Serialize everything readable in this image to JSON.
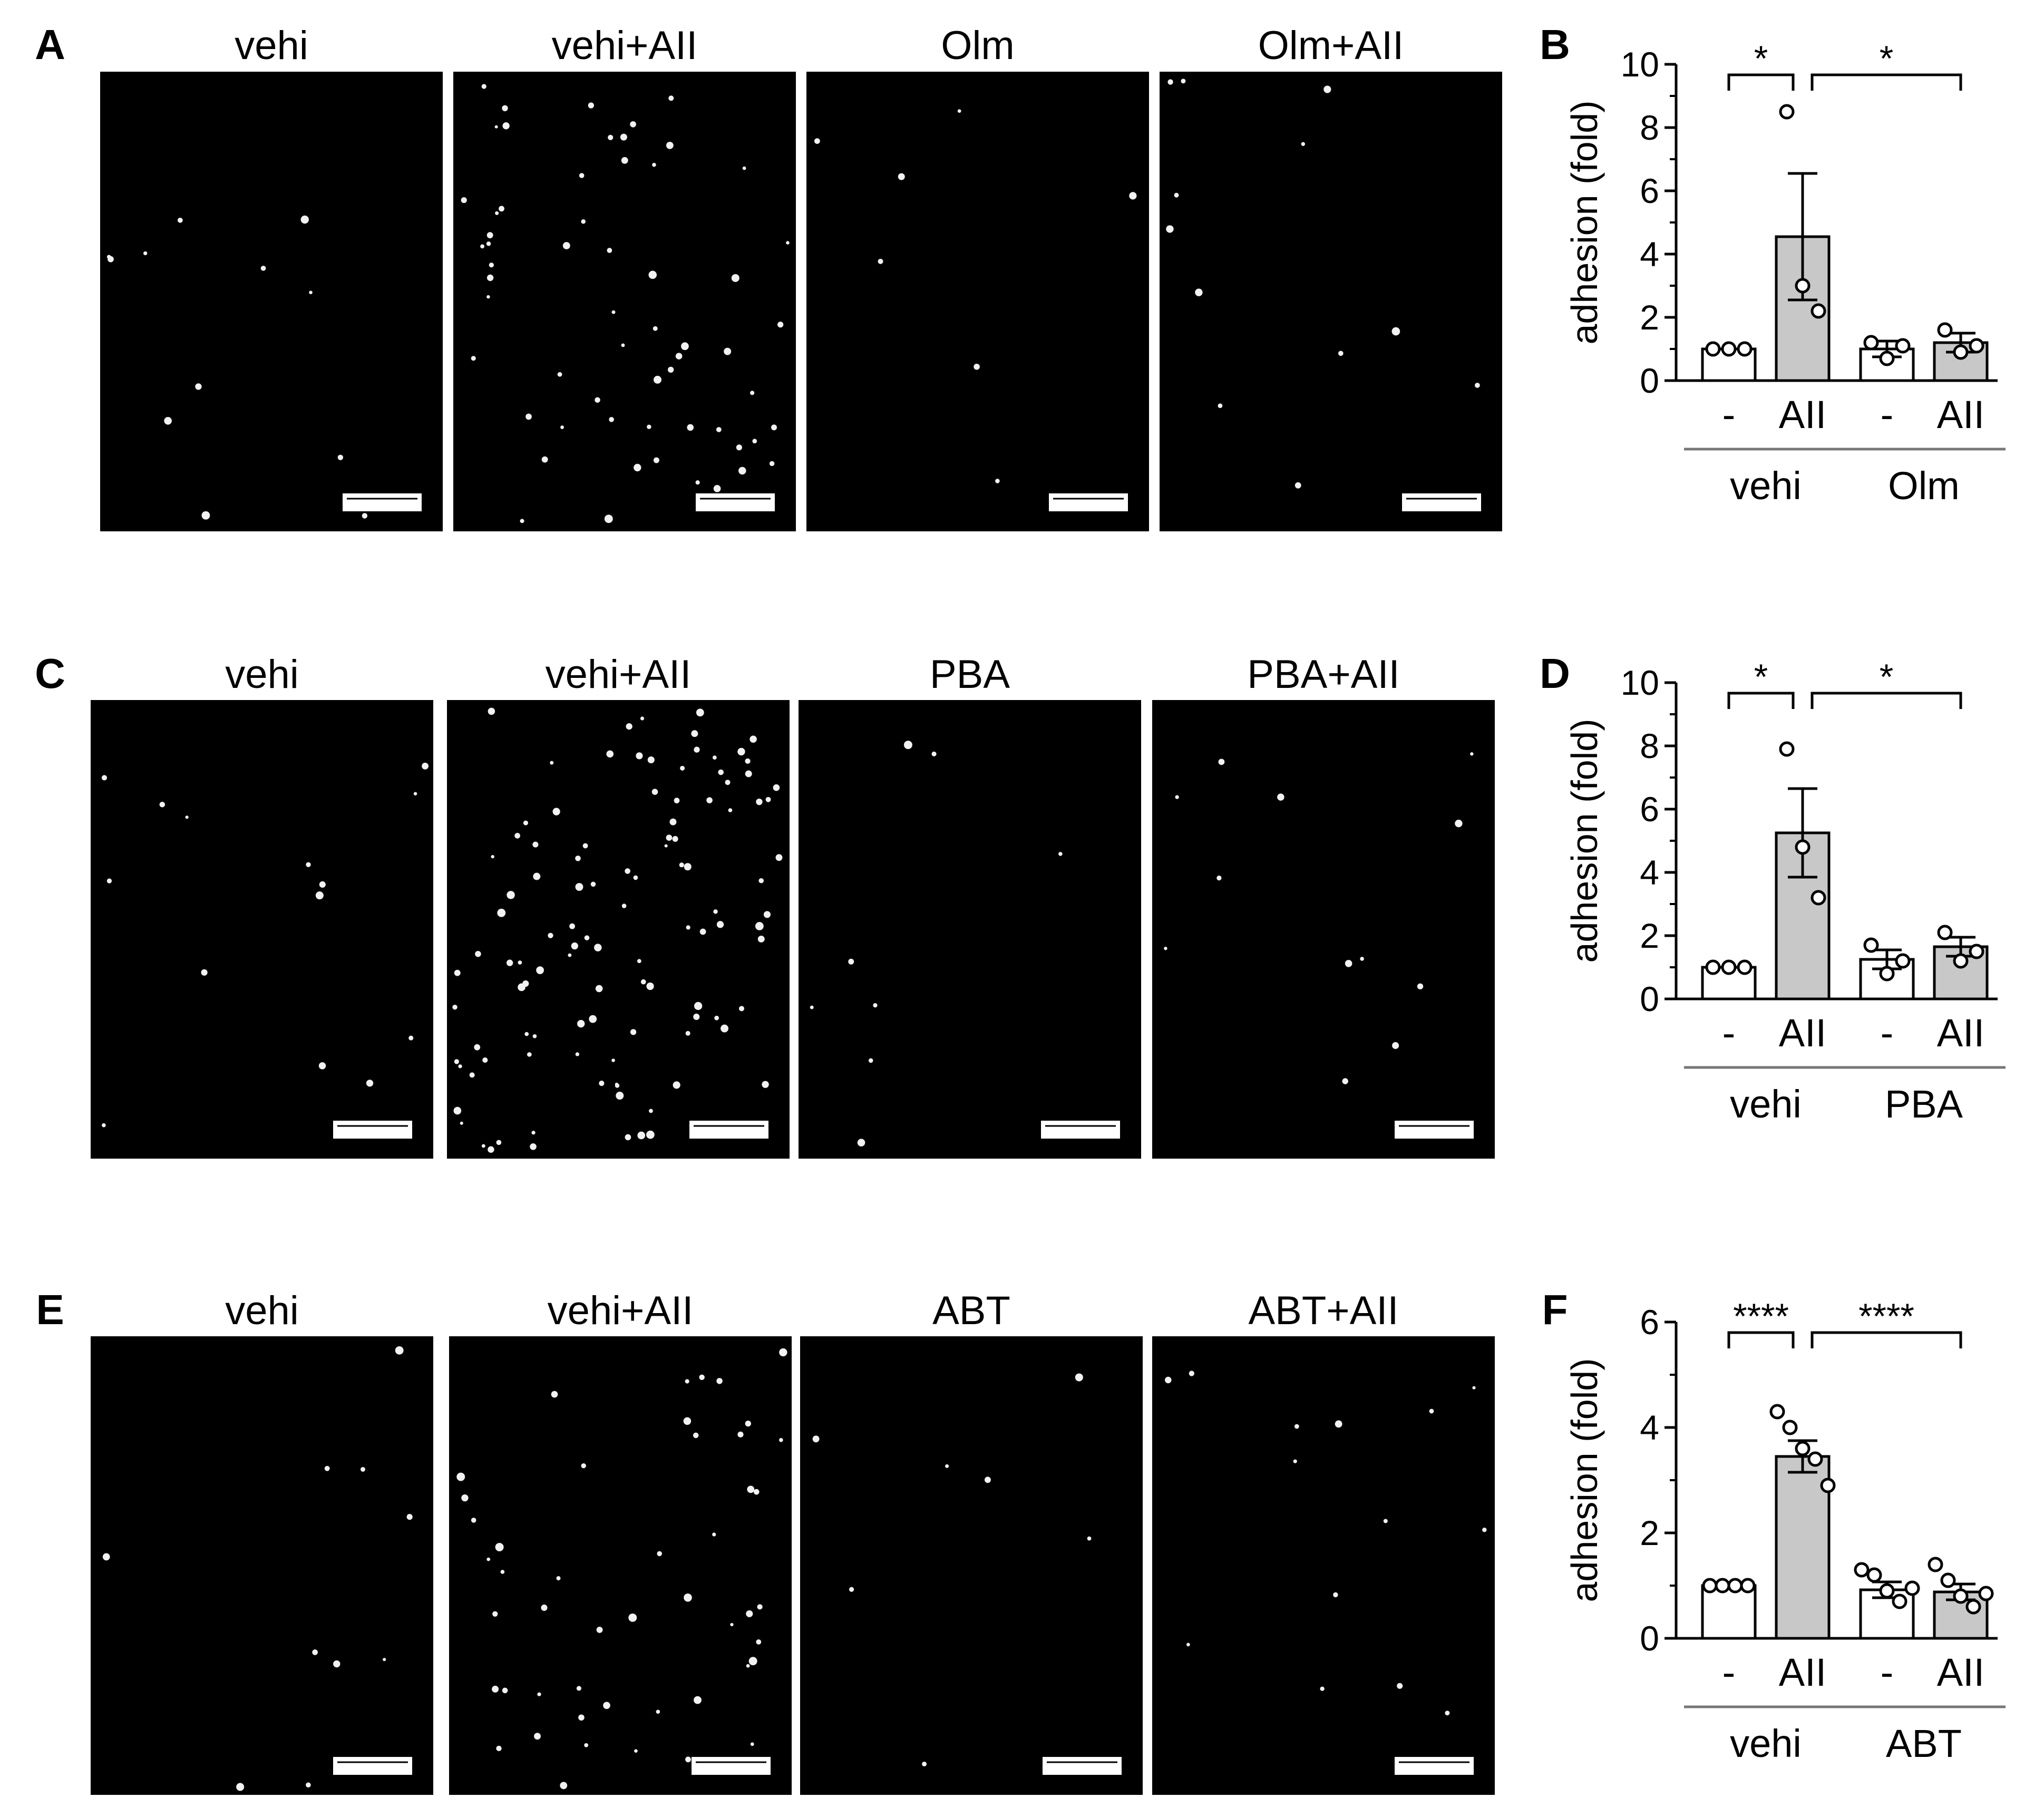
{
  "panels": [
    {
      "images_letter": "A",
      "image_titles": [
        "vehi",
        "vehi+AII",
        "Olm",
        "Olm+AII"
      ],
      "image_dots": [
        12,
        60,
        7,
        12
      ],
      "chart_letter": "B",
      "chart_data": {
        "type": "bar",
        "title": "",
        "ylabel": "adhesion (fold)",
        "xlabel": "",
        "ylim": [
          0,
          10
        ],
        "yticks": [
          "0",
          "2",
          "4",
          "6",
          "8",
          "10"
        ],
        "categories": [
          "-",
          "AII",
          "-",
          "AII"
        ],
        "groups": [
          {
            "label": "vehi"
          },
          {
            "label": "Olm"
          }
        ],
        "values": [
          1.0,
          4.55,
          1.0,
          1.2
        ],
        "sem": [
          0.0,
          2.0,
          0.25,
          0.3
        ],
        "points": [
          [
            1.0,
            1.0,
            1.0
          ],
          [
            8.5,
            3.0,
            2.2
          ],
          [
            1.2,
            0.7,
            1.1
          ],
          [
            1.6,
            0.9,
            1.1
          ]
        ],
        "bar_colors": [
          "#ffffff",
          "#c8c8c8",
          "#ffffff",
          "#c8c8c8"
        ],
        "significance": [
          {
            "from": 0,
            "to": 1,
            "label": "*"
          },
          {
            "from": 1,
            "to": 3,
            "label": "*"
          }
        ]
      }
    },
    {
      "images_letter": "C",
      "image_titles": [
        "vehi",
        "vehi+AII",
        "PBA",
        "PBA+AII"
      ],
      "image_dots": [
        14,
        110,
        8,
        12
      ],
      "chart_letter": "D",
      "chart_data": {
        "type": "bar",
        "title": "",
        "ylabel": "adhesion (fold)",
        "xlabel": "",
        "ylim": [
          0,
          10
        ],
        "yticks": [
          "0",
          "2",
          "4",
          "6",
          "8",
          "10"
        ],
        "categories": [
          "-",
          "AII",
          "-",
          "AII"
        ],
        "groups": [
          {
            "label": "vehi"
          },
          {
            "label": "PBA"
          }
        ],
        "values": [
          1.0,
          5.25,
          1.25,
          1.65
        ],
        "sem": [
          0.0,
          1.4,
          0.3,
          0.3
        ],
        "points": [
          [
            1.0,
            1.0,
            1.0
          ],
          [
            7.9,
            4.8,
            3.2
          ],
          [
            1.7,
            0.8,
            1.2
          ],
          [
            2.1,
            1.2,
            1.5
          ]
        ],
        "bar_colors": [
          "#ffffff",
          "#c8c8c8",
          "#ffffff",
          "#c8c8c8"
        ],
        "significance": [
          {
            "from": 0,
            "to": 1,
            "label": "*"
          },
          {
            "from": 1,
            "to": 3,
            "label": "*"
          }
        ]
      }
    },
    {
      "images_letter": "E",
      "image_titles": [
        "vehi",
        "vehi+AII",
        "ABT",
        "ABT+AII"
      ],
      "image_dots": [
        10,
        48,
        9,
        14
      ],
      "chart_letter": "F",
      "chart_data": {
        "type": "bar",
        "title": "",
        "ylabel": "adhesion (fold)",
        "xlabel": "",
        "ylim": [
          0,
          6
        ],
        "yticks": [
          "0",
          "2",
          "4",
          "6"
        ],
        "categories": [
          "-",
          "AII",
          "-",
          "AII"
        ],
        "groups": [
          {
            "label": "vehi"
          },
          {
            "label": "ABT"
          }
        ],
        "values": [
          1.0,
          3.45,
          0.92,
          0.88
        ],
        "sem": [
          0.0,
          0.3,
          0.15,
          0.15
        ],
        "points": [
          [
            1.0,
            1.0,
            1.0,
            1.0
          ],
          [
            4.3,
            4.0,
            3.6,
            3.4,
            2.9
          ],
          [
            1.3,
            1.2,
            0.9,
            0.7,
            0.95
          ],
          [
            1.4,
            1.1,
            0.8,
            0.6,
            0.85
          ]
        ],
        "bar_colors": [
          "#ffffff",
          "#c8c8c8",
          "#ffffff",
          "#c8c8c8"
        ],
        "significance": [
          {
            "from": 0,
            "to": 1,
            "label": "****"
          },
          {
            "from": 1,
            "to": 3,
            "label": "****"
          }
        ]
      }
    }
  ]
}
